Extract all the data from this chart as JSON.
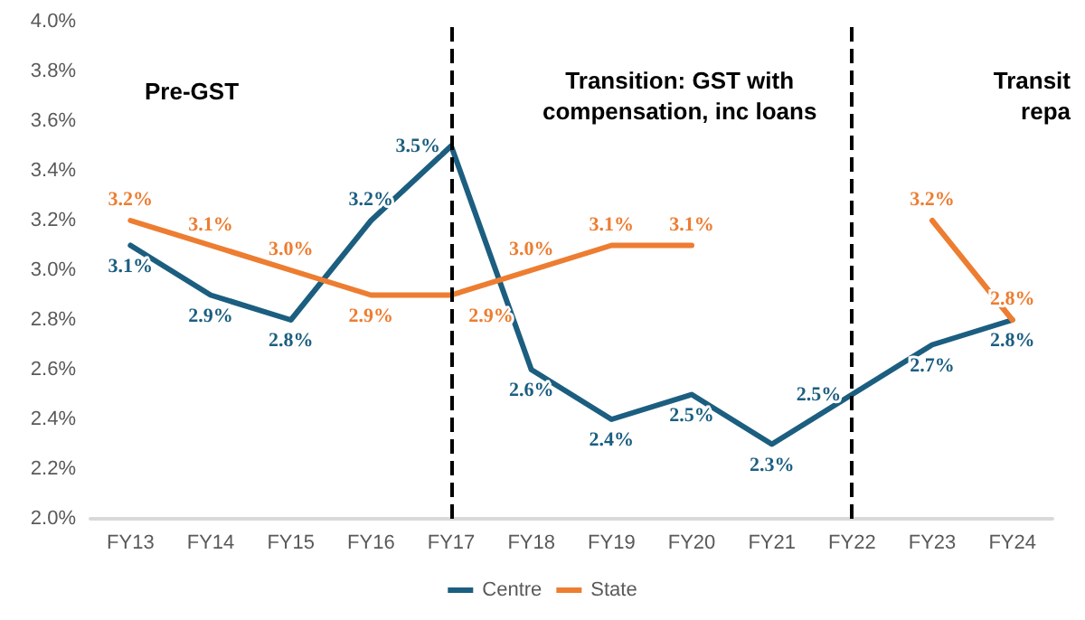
{
  "chart_data": {
    "type": "line",
    "categories": [
      "FY13",
      "FY14",
      "FY15",
      "FY16",
      "FY17",
      "FY18",
      "FY19",
      "FY20",
      "FY21",
      "FY22",
      "FY23",
      "FY24"
    ],
    "ylim": [
      2.0,
      4.0
    ],
    "yticks": [
      {
        "value": 2.0,
        "label": "2.0%"
      },
      {
        "value": 2.2,
        "label": "2.2%"
      },
      {
        "value": 2.4,
        "label": "2.4%"
      },
      {
        "value": 2.6,
        "label": "2.6%"
      },
      {
        "value": 2.8,
        "label": "2.8%"
      },
      {
        "value": 3.0,
        "label": "3.0%"
      },
      {
        "value": 3.2,
        "label": "3.2%"
      },
      {
        "value": 3.4,
        "label": "3.4%"
      },
      {
        "value": 3.6,
        "label": "3.6%"
      },
      {
        "value": 3.8,
        "label": "3.8%"
      },
      {
        "value": 4.0,
        "label": "4.0%"
      }
    ],
    "series": [
      {
        "name": "Centre",
        "color": "#1b5e80",
        "values": [
          3.1,
          2.9,
          2.8,
          3.2,
          3.5,
          2.6,
          2.4,
          2.5,
          2.3,
          2.5,
          2.7,
          2.8
        ],
        "value_labels": [
          "3.1%",
          "2.9%",
          "2.8%",
          "3.2%",
          "3.5%",
          "2.6%",
          "2.4%",
          "2.5%",
          "2.3%",
          "2.5%",
          "2.7%",
          "2.8%"
        ]
      },
      {
        "name": "State",
        "color": "#ed7d31",
        "values": [
          3.2,
          3.1,
          3.0,
          2.9,
          2.9,
          3.0,
          3.1,
          3.1,
          null,
          null,
          3.2,
          2.8
        ],
        "value_labels": [
          "3.2%",
          "3.1%",
          "3.0%",
          "2.9%",
          "2.9%",
          "3.0%",
          "3.1%",
          "3.1%",
          null,
          null,
          "3.2%",
          "2.8%"
        ]
      }
    ],
    "ref_lines": [
      {
        "axis": "x",
        "value": "FY17",
        "label": null,
        "color": "#000000",
        "line_style": "dashed"
      },
      {
        "axis": "x",
        "value": "FY22",
        "label": null,
        "color": "#000000",
        "line_style": "dashed"
      }
    ],
    "annotations": [
      "Pre-GST",
      "Transition: GST with\ncompensation, inc loans",
      "Transit\nrepa"
    ],
    "grid": false,
    "legend": "bottom",
    "marker": "none",
    "line_style": "solid"
  }
}
